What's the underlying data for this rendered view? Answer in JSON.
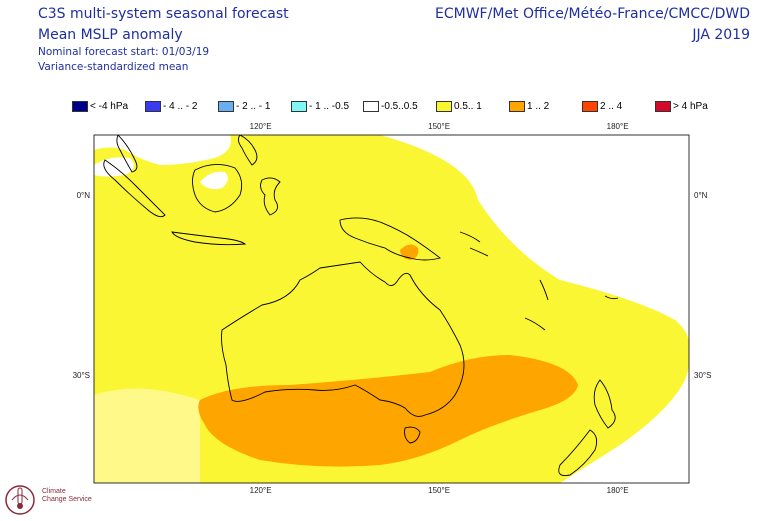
{
  "header": {
    "title": "C3S multi-system seasonal forecast",
    "subtitle": "Mean MSLP anomaly",
    "forecast_start": "Nominal forecast start: 01/03/19",
    "method": "Variance-standardized mean",
    "centres": "ECMWF/Met Office/Météo-France/CMCC/DWD",
    "season": "JJA 2019"
  },
  "legend": [
    {
      "label": "< -4 hPa",
      "color": "#00008b"
    },
    {
      "label": "- 4 .. - 2",
      "color": "#3a3af0"
    },
    {
      "label": "- 2 .. - 1",
      "color": "#6aaef0"
    },
    {
      "label": "- 1 .. -0.5",
      "color": "#7ff7f7"
    },
    {
      "label": "-0.5..0.5",
      "color": "#ffffff"
    },
    {
      "label": "0.5.. 1",
      "color": "#fbf634"
    },
    {
      "label": "1 .. 2",
      "color": "#ffa500"
    },
    {
      "label": "2 .. 4",
      "color": "#ff4500"
    },
    {
      "label": ">  4 hPa",
      "color": "#d10a2a"
    }
  ],
  "map": {
    "lon_range": [
      92,
      192
    ],
    "lat_range": [
      -48,
      10
    ],
    "lon_ticks": [
      "120°E",
      "150°E",
      "180°E"
    ],
    "lat_ticks": [
      "0°N",
      "30°S"
    ],
    "colors": {
      "background": "#ffffff",
      "weak_positive": "#fbf634",
      "moderate_positive": "#ffa500",
      "light_yellow": "#fff98a",
      "coast": "#000000"
    }
  },
  "logo": {
    "icon": "thermometer-globe-icon",
    "line1": "Climate",
    "line2": "Change Service"
  }
}
